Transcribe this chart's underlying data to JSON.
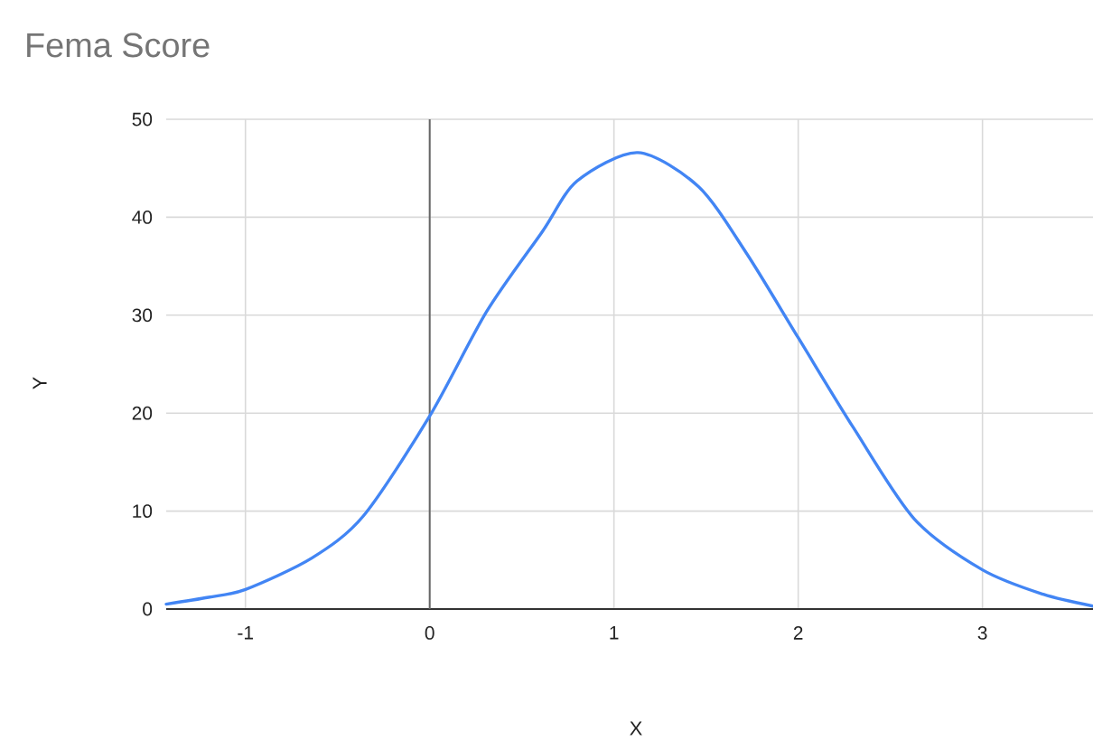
{
  "chart_data": {
    "type": "line",
    "title": "Fema Score",
    "xlabel": "X",
    "ylabel": "Y",
    "xlim": [
      -1.43,
      3.6
    ],
    "xticks": [
      -1,
      0,
      1,
      2,
      3
    ],
    "ylim": [
      0,
      50
    ],
    "yticks": [
      0,
      10,
      20,
      30,
      40,
      50
    ],
    "grid": true,
    "marker": "none",
    "line_style": "solid",
    "ref_lines": [
      {
        "axis": "x",
        "value": 0,
        "color": "#666666"
      }
    ],
    "series": [
      {
        "color": "#4285f4",
        "x": [
          -1.43,
          -1.2,
          -1,
          -0.64,
          -0.36,
          0,
          0.31,
          0.61,
          0.8,
          1.13,
          1.46,
          1.72,
          2,
          2.3,
          2.63,
          3,
          3.33,
          3.6
        ],
        "values": [
          0.5,
          1.2,
          2.0,
          5.2,
          9.5,
          19.7,
          30.4,
          38.5,
          43.7,
          46.6,
          43.1,
          36.3,
          27.7,
          18.5,
          9.2,
          4.0,
          1.5,
          0.3
        ]
      }
    ]
  }
}
